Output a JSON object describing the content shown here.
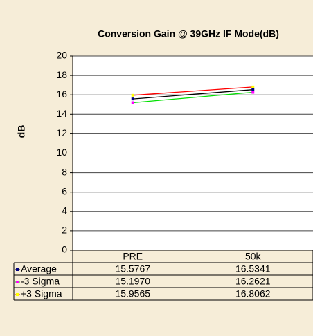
{
  "chart_data": {
    "type": "line",
    "title": "Conversion Gain @ 39GHz IF Mode(dB)",
    "y_label": "dB",
    "categories": [
      "PRE",
      "50k"
    ],
    "series": [
      {
        "name": "Average",
        "color": "#000000",
        "marker_color": "#000080",
        "values": [
          15.5767,
          16.5341
        ]
      },
      {
        "name": "-3 Sigma",
        "color": "#00e000",
        "marker_color": "#ff00ff",
        "values": [
          15.197,
          16.2621
        ],
        "value_labels": [
          "15.1970",
          "16.2621"
        ]
      },
      {
        "name": "+3 Sigma",
        "color": "#ff0000",
        "marker_color": "#ffff00",
        "values": [
          15.9565,
          16.8062
        ]
      }
    ],
    "ylim": [
      0,
      20
    ],
    "yticks": [
      0,
      2,
      4,
      6,
      8,
      10,
      12,
      14,
      16,
      18,
      20
    ],
    "grid": true
  }
}
